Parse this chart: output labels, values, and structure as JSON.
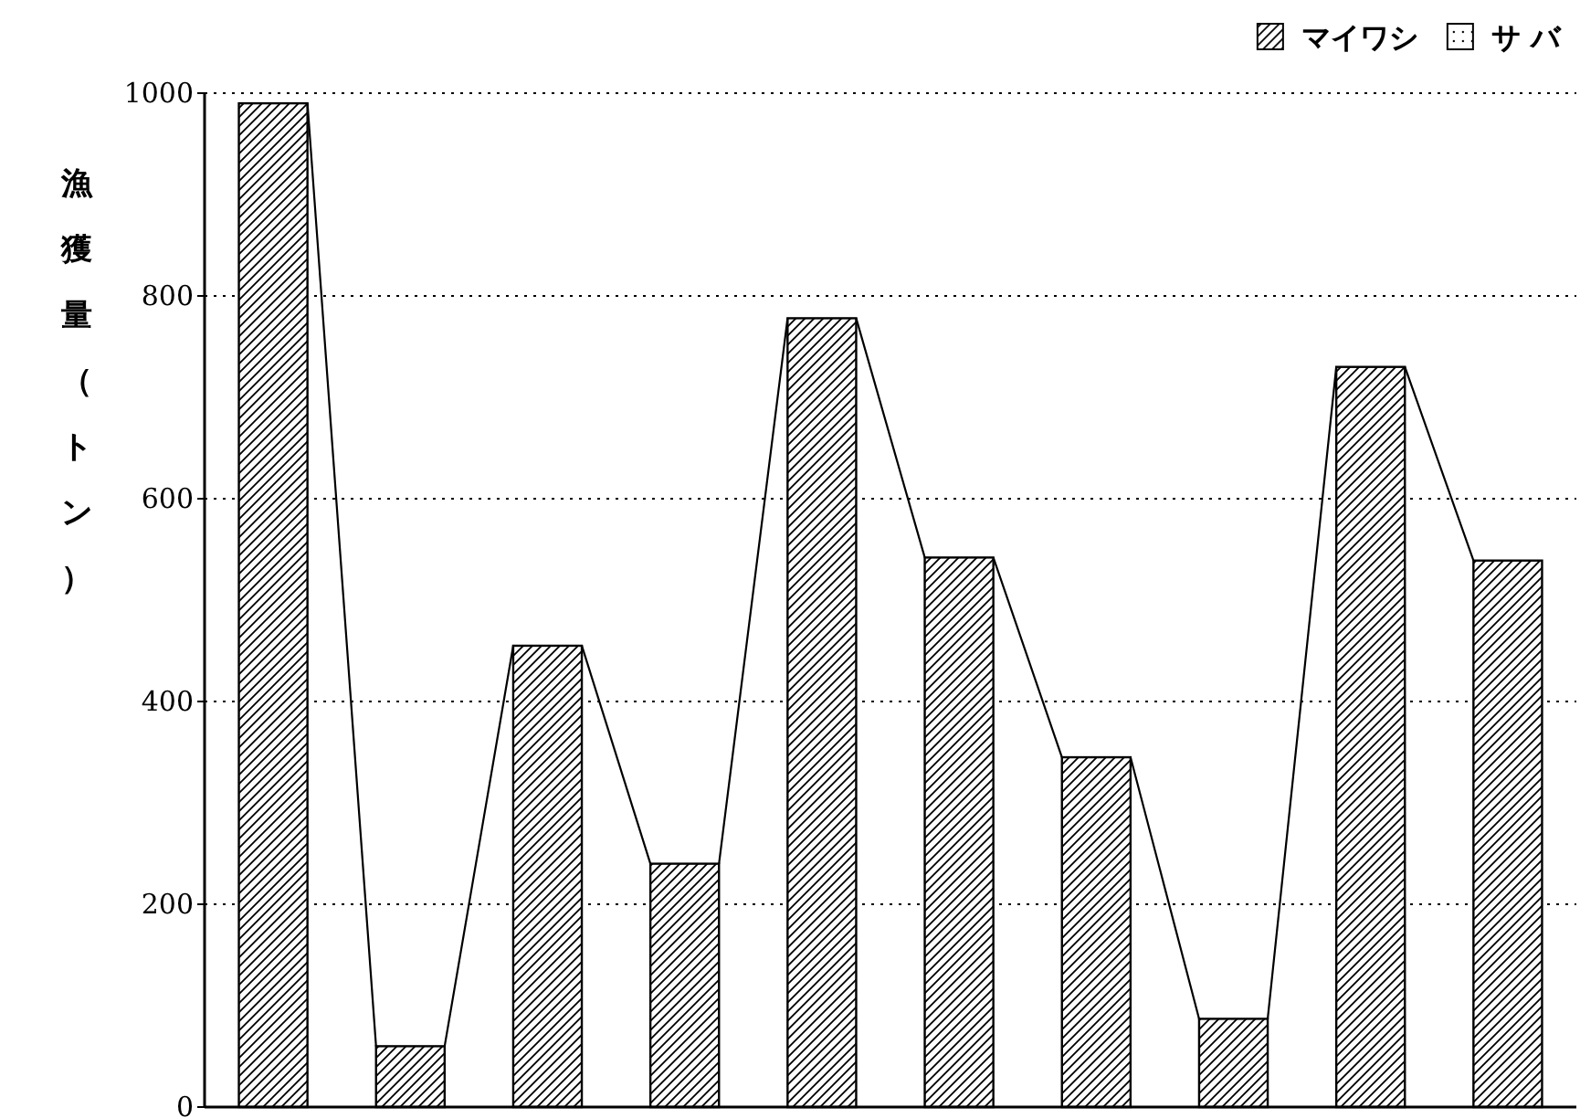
{
  "chart_data": {
    "type": "bar",
    "ylabel": "漁獲量（トン）",
    "categories": [
      null,
      null,
      null,
      null,
      null,
      null,
      null,
      null,
      null,
      null
    ],
    "series": [
      {
        "name": "マイワシ",
        "color": "#000000",
        "values": [
          990,
          60,
          455,
          240,
          778,
          542,
          345,
          87,
          730,
          539
        ]
      },
      {
        "name": "サ バ",
        "color": "#000000",
        "values": [
          0,
          0,
          0,
          0,
          0,
          0,
          0,
          0,
          0,
          0
        ]
      }
    ],
    "stacked": true,
    "ylim": [
      0,
      1000
    ],
    "yticks": [
      0,
      200,
      400,
      600,
      800,
      1000
    ],
    "grid": "y",
    "legend": "top right"
  }
}
